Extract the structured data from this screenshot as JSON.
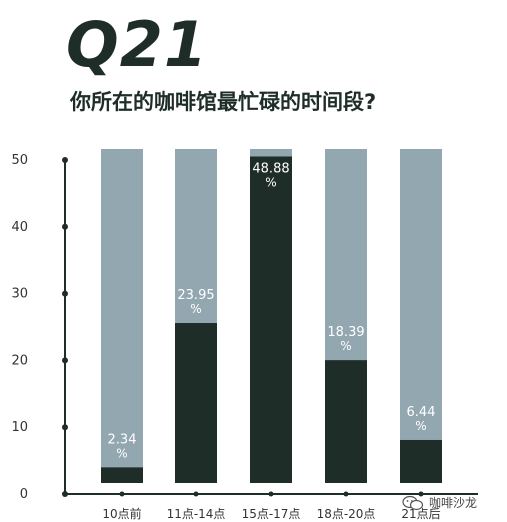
{
  "header": {
    "question": "Q21",
    "subtitle": "你所在的咖啡馆最忙碌的时间段?"
  },
  "watermark": {
    "text": "咖啡沙龙",
    "icon": "wechat-icon"
  },
  "colors": {
    "dark": "#1f2d28",
    "light": "#93a7b0",
    "axis": "#1f2d28",
    "label_on_light": "#ffffff",
    "label_on_dark": "#ffffff"
  },
  "chart_data": {
    "type": "bar",
    "stacked_to": 50,
    "categories": [
      "10点前",
      "11点-14点",
      "15点-17点",
      "18点-20点",
      "21点后"
    ],
    "values": [
      2.34,
      23.95,
      48.88,
      18.39,
      6.44
    ],
    "value_labels": [
      "2.34\n%",
      "23.95\n%",
      "48.88\n%",
      "18.39\n%",
      "6.44\n%"
    ],
    "ylim": [
      0,
      50
    ],
    "yticks": [
      0,
      10,
      20,
      30,
      40,
      50
    ],
    "xlabel": "",
    "ylabel": "",
    "grid": false,
    "legend": "none"
  }
}
